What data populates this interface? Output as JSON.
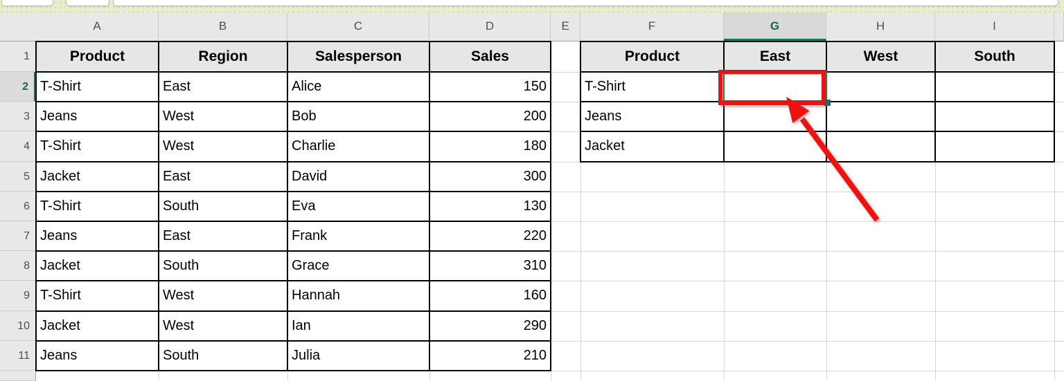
{
  "sheet": {
    "column_headers": [
      "A",
      "B",
      "C",
      "D",
      "E",
      "F",
      "G",
      "H",
      "I"
    ],
    "row_headers": [
      "1",
      "2",
      "3",
      "4",
      "5",
      "6",
      "7",
      "8",
      "9",
      "10",
      "11"
    ],
    "selected_cell": "G2",
    "selected_column": "G",
    "selected_row": "2",
    "left_table": {
      "headers": [
        "Product",
        "Region",
        "Salesperson",
        "Sales"
      ],
      "rows": [
        [
          "T-Shirt",
          "East",
          "Alice",
          "150"
        ],
        [
          "Jeans",
          "West",
          "Bob",
          "200"
        ],
        [
          "T-Shirt",
          "West",
          "Charlie",
          "180"
        ],
        [
          "Jacket",
          "East",
          "David",
          "300"
        ],
        [
          "T-Shirt",
          "South",
          "Eva",
          "130"
        ],
        [
          "Jeans",
          "East",
          "Frank",
          "220"
        ],
        [
          "Jacket",
          "South",
          "Grace",
          "310"
        ],
        [
          "T-Shirt",
          "West",
          "Hannah",
          "160"
        ],
        [
          "Jacket",
          "West",
          "Ian",
          "290"
        ],
        [
          "Jeans",
          "South",
          "Julia",
          "210"
        ]
      ]
    },
    "right_table": {
      "headers": [
        "Product",
        "East",
        "West",
        "South"
      ],
      "rows": [
        [
          "T-Shirt",
          "",
          "",
          ""
        ],
        [
          "Jeans",
          "",
          "",
          ""
        ],
        [
          "Jacket",
          "",
          "",
          ""
        ]
      ]
    }
  },
  "annotation": {
    "highlighted_cell": "G2",
    "rectangle_color": "#f01010",
    "arrow_color": "#f01010"
  },
  "colors": {
    "selection_green": "#14794a",
    "header_bg": "#e8e8e8",
    "selected_header_bg": "#d9d9d9",
    "table_header_bg": "#e7e6e6",
    "gridline": "#d6d6d6",
    "top_strip_bg": "#e9edca"
  }
}
